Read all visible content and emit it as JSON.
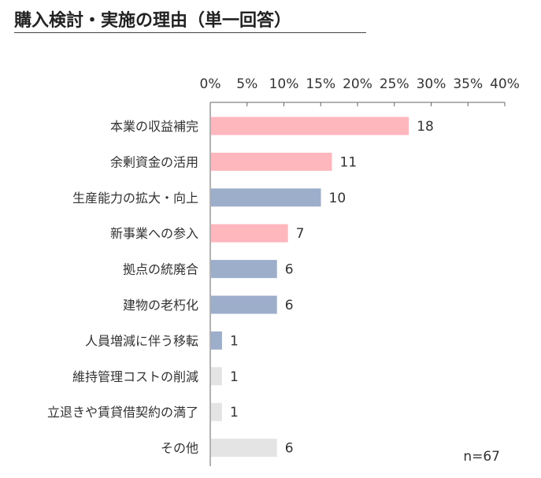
{
  "title": "購入検討・実施の理由（単一回答）",
  "n_label": "n=67",
  "chart_data": {
    "type": "bar",
    "orientation": "horizontal",
    "title": "購入検討・実施の理由（単一回答）",
    "x_ticks": [
      "0%",
      "5%",
      "10%",
      "15%",
      "20%",
      "25%",
      "30%",
      "35%",
      "40%"
    ],
    "xlim": [
      0,
      40
    ],
    "total": 67,
    "grid": false,
    "categories": [
      "本業の収益補完",
      "余剰資金の活用",
      "生産能力の拡大・向上",
      "新事業への参入",
      "拠点の統廃合",
      "建物の老朽化",
      "人員増減に伴う移転",
      "維持管理コストの削減",
      "立退きや賃貸借契約の満了",
      "その他"
    ],
    "values": [
      18,
      11,
      10,
      7,
      6,
      6,
      1,
      1,
      1,
      6
    ],
    "groups": [
      "pink",
      "pink",
      "blue",
      "pink",
      "blue",
      "blue",
      "blue",
      "gray",
      "gray",
      "gray"
    ],
    "colors": {
      "pink": "#ffb7be",
      "blue": "#9daecb",
      "gray": "#e4e4e4"
    }
  }
}
